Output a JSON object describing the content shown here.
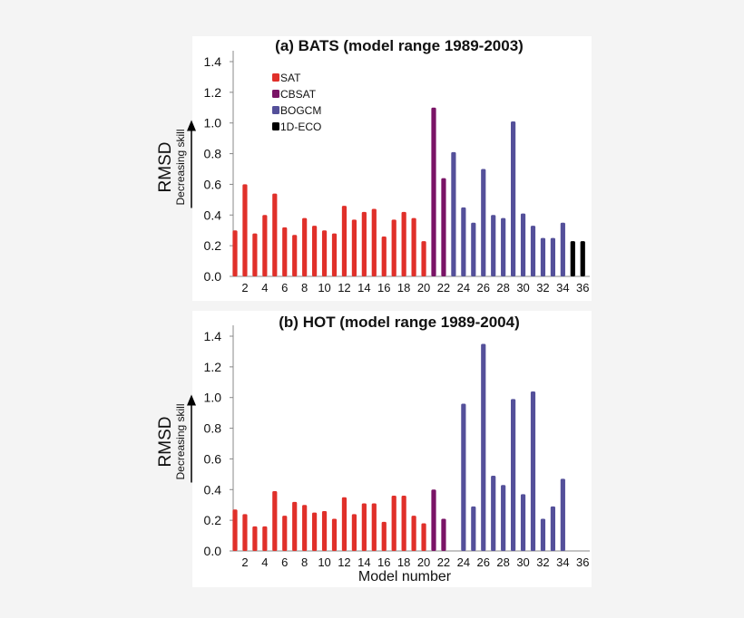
{
  "chart_data": [
    {
      "type": "bar",
      "title": "(a) BATS (model range 1989-2003)",
      "ylabel": "RMSD",
      "ylabel_sub": "Decreasing skill",
      "xlabel": "",
      "ylim": [
        0,
        1.4
      ],
      "yticks": [
        "0.0",
        "0.2",
        "0.4",
        "0.6",
        "0.8",
        "1.0",
        "1.2",
        "1.4"
      ],
      "xticks": [
        "2",
        "4",
        "6",
        "8",
        "10",
        "12",
        "14",
        "16",
        "18",
        "20",
        "22",
        "24",
        "26",
        "28",
        "30",
        "32",
        "34",
        "36"
      ],
      "models": [
        1,
        2,
        3,
        4,
        5,
        6,
        7,
        8,
        9,
        10,
        11,
        12,
        13,
        14,
        15,
        16,
        17,
        18,
        19,
        20,
        21,
        22,
        23,
        24,
        25,
        26,
        27,
        28,
        29,
        30,
        31,
        32,
        33,
        34,
        35,
        36
      ],
      "values": [
        0.3,
        0.6,
        0.28,
        0.4,
        0.54,
        0.32,
        0.27,
        0.38,
        0.33,
        0.3,
        0.28,
        0.46,
        0.37,
        0.42,
        0.44,
        0.26,
        0.37,
        0.42,
        0.38,
        0.23,
        1.1,
        0.64,
        0.81,
        0.45,
        0.35,
        0.7,
        0.4,
        0.38,
        1.01,
        0.41,
        0.33,
        0.25,
        0.25,
        0.35,
        0.23,
        0.23
      ],
      "groups": [
        "SAT",
        "SAT",
        "SAT",
        "SAT",
        "SAT",
        "SAT",
        "SAT",
        "SAT",
        "SAT",
        "SAT",
        "SAT",
        "SAT",
        "SAT",
        "SAT",
        "SAT",
        "SAT",
        "SAT",
        "SAT",
        "SAT",
        "SAT",
        "CBSAT",
        "CBSAT",
        "BOGCM",
        "BOGCM",
        "BOGCM",
        "BOGCM",
        "BOGCM",
        "BOGCM",
        "BOGCM",
        "BOGCM",
        "BOGCM",
        "BOGCM",
        "BOGCM",
        "BOGCM",
        "1D-ECO",
        "1D-ECO"
      ],
      "legend": [
        {
          "name": "SAT",
          "color": "#e0302a"
        },
        {
          "name": "CBSAT",
          "color": "#7a1466"
        },
        {
          "name": "BOGCM",
          "color": "#54509a"
        },
        {
          "name": "1D-ECO",
          "color": "#000000"
        }
      ],
      "legend_position": "top-left",
      "grid": false
    },
    {
      "type": "bar",
      "title": "(b) HOT (model range 1989-2004)",
      "ylabel": "RMSD",
      "ylabel_sub": "Decreasing skill",
      "xlabel": "Model number",
      "ylim": [
        0,
        1.4
      ],
      "yticks": [
        "0.0",
        "0.2",
        "0.4",
        "0.6",
        "0.8",
        "1.0",
        "1.2",
        "1.4"
      ],
      "xticks": [
        "2",
        "4",
        "6",
        "8",
        "10",
        "12",
        "14",
        "16",
        "18",
        "20",
        "22",
        "24",
        "26",
        "28",
        "30",
        "32",
        "34",
        "36"
      ],
      "models": [
        1,
        2,
        3,
        4,
        5,
        6,
        7,
        8,
        9,
        10,
        11,
        12,
        13,
        14,
        15,
        16,
        17,
        18,
        19,
        20,
        21,
        22,
        23,
        24,
        25,
        26,
        27,
        28,
        29,
        30,
        31,
        32,
        33,
        34,
        35,
        36
      ],
      "values": [
        0.27,
        0.24,
        0.16,
        0.16,
        0.39,
        0.23,
        0.32,
        0.3,
        0.25,
        0.26,
        0.21,
        0.35,
        0.24,
        0.31,
        0.31,
        0.19,
        0.36,
        0.36,
        0.23,
        0.18,
        0.4,
        0.21,
        null,
        0.96,
        0.29,
        1.35,
        0.49,
        0.43,
        0.99,
        0.37,
        1.04,
        0.21,
        0.29,
        0.47,
        null,
        null
      ],
      "groups": [
        "SAT",
        "SAT",
        "SAT",
        "SAT",
        "SAT",
        "SAT",
        "SAT",
        "SAT",
        "SAT",
        "SAT",
        "SAT",
        "SAT",
        "SAT",
        "SAT",
        "SAT",
        "SAT",
        "SAT",
        "SAT",
        "SAT",
        "SAT",
        "CBSAT",
        "CBSAT",
        "BOGCM",
        "BOGCM",
        "BOGCM",
        "BOGCM",
        "BOGCM",
        "BOGCM",
        "BOGCM",
        "BOGCM",
        "BOGCM",
        "BOGCM",
        "BOGCM",
        "BOGCM",
        "1D-ECO",
        "1D-ECO"
      ],
      "grid": false
    }
  ]
}
